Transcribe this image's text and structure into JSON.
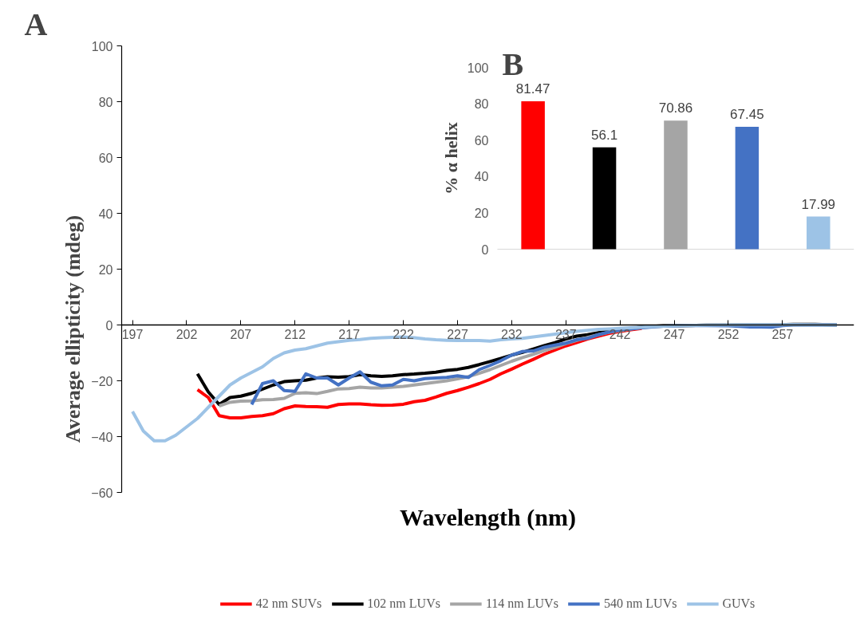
{
  "chart_data": [
    {
      "type": "line",
      "title": "A",
      "xlabel": "Wavelength (nm)",
      "ylabel": "Average ellipticity (mdeg)",
      "xlim": [
        196,
        263.6
      ],
      "ylim": [
        -60,
        100
      ],
      "xticks": [
        197,
        202,
        207,
        212,
        217,
        222,
        227,
        232,
        237,
        242,
        247,
        252,
        257
      ],
      "yticks": [
        -60,
        -40,
        -20,
        0,
        20,
        40,
        60,
        80,
        100
      ],
      "legend": "bottom",
      "line_style": "solid",
      "marker": "none",
      "series": [
        {
          "name": "42 nm SUVs",
          "color": "#ff0000",
          "x": [
            203,
            204,
            205,
            206,
            207,
            208,
            209,
            210,
            211,
            212,
            213,
            214,
            215,
            216,
            217,
            218,
            219,
            220,
            221,
            222,
            223,
            224,
            225,
            226,
            227,
            228,
            229,
            230,
            231,
            232,
            233,
            234,
            235,
            236,
            237,
            238,
            239,
            240,
            241,
            242,
            243,
            244
          ],
          "values": [
            -23.2,
            -26,
            -32.5,
            -33.3,
            -33.3,
            -32.8,
            -32.5,
            -31.8,
            -30,
            -29,
            -29.2,
            -29.3,
            -29.5,
            -28.5,
            -28.3,
            -28.3,
            -28.6,
            -28.8,
            -28.7,
            -28.4,
            -27.5,
            -27,
            -25.8,
            -24.5,
            -23.5,
            -22.3,
            -21,
            -19.5,
            -17.5,
            -15.8,
            -14,
            -12.3,
            -10.5,
            -9,
            -7.5,
            -6.3,
            -5,
            -4,
            -3,
            -2.3,
            -1.7,
            -1.2
          ]
        },
        {
          "name": "102 nm LUVs",
          "color": "#000000",
          "x": [
            203,
            204,
            205,
            206,
            207,
            208,
            209,
            210,
            211,
            212,
            213,
            214,
            215,
            216,
            217,
            218,
            219,
            220,
            221,
            222,
            223,
            224,
            225,
            226,
            227,
            228,
            229,
            230,
            231,
            232,
            233,
            234,
            235,
            236,
            237,
            238,
            239,
            240,
            241,
            242,
            243,
            244,
            245,
            246,
            248,
            250,
            252,
            254,
            256,
            258,
            260,
            262
          ],
          "values": [
            -17.5,
            -24,
            -28.5,
            -26,
            -25.5,
            -24.5,
            -23,
            -21.5,
            -20.3,
            -20,
            -19.8,
            -19,
            -18.6,
            -18.7,
            -18.5,
            -17.8,
            -18.2,
            -18.4,
            -18.2,
            -17.8,
            -17.6,
            -17.3,
            -16.9,
            -16.3,
            -15.9,
            -15.2,
            -14.2,
            -13.1,
            -12,
            -10.8,
            -9.8,
            -8.6,
            -7.4,
            -6.3,
            -5,
            -4,
            -3.5,
            -2.8,
            -2.2,
            -1.7,
            -1.2,
            -0.8,
            -0.5,
            -0.3,
            -0.2,
            -0.1,
            -0.1,
            0,
            0,
            0.2,
            0.2,
            0
          ]
        },
        {
          "name": "114 nm LUVs",
          "color": "#a5a5a5",
          "x": [
            205,
            206,
            207,
            208,
            209,
            210,
            211,
            212,
            213,
            214,
            215,
            216,
            217,
            218,
            219,
            220,
            221,
            222,
            223,
            224,
            225,
            226,
            227,
            228,
            229,
            230,
            231,
            232,
            233,
            234,
            235,
            236,
            237,
            238,
            239,
            240,
            241,
            242,
            243,
            244,
            245,
            246,
            248,
            250,
            252,
            254,
            256,
            258,
            260,
            262
          ],
          "values": [
            -29,
            -27.7,
            -27.3,
            -27.2,
            -26.8,
            -26.7,
            -26.3,
            -24.5,
            -24.3,
            -24.6,
            -23.8,
            -22.9,
            -22.8,
            -22.3,
            -22.6,
            -22.6,
            -22.3,
            -22,
            -21.5,
            -21,
            -20.5,
            -20,
            -19.3,
            -18.5,
            -17.3,
            -16,
            -14.5,
            -13,
            -11.7,
            -10.5,
            -9.2,
            -8,
            -6.7,
            -5.5,
            -4.5,
            -3.5,
            -2.6,
            -2,
            -1.4,
            -1,
            -0.6,
            -0.4,
            -0.2,
            -0.1,
            0,
            0,
            0,
            0.1,
            0.1,
            0
          ]
        },
        {
          "name": "540 nm LUVs",
          "color": "#4472c4",
          "x": [
            208,
            209,
            210,
            211,
            212,
            213,
            214,
            215,
            216,
            217,
            218,
            219,
            220,
            221,
            222,
            223,
            224,
            225,
            226,
            227,
            228,
            229,
            230,
            231,
            232,
            233,
            234,
            235,
            236,
            237,
            238,
            239,
            240,
            241,
            242,
            243,
            244,
            245,
            246,
            248,
            250,
            252,
            254,
            255,
            256,
            257,
            258,
            260,
            262
          ],
          "values": [
            -28.5,
            -21,
            -20,
            -23.5,
            -23.8,
            -17.5,
            -19,
            -19,
            -21.5,
            -19,
            -16.8,
            -20.5,
            -21.8,
            -21.5,
            -19.5,
            -20,
            -19.2,
            -19,
            -18.8,
            -18.2,
            -18.8,
            -16,
            -14.5,
            -12.8,
            -10.8,
            -9.5,
            -9.3,
            -8,
            -7.2,
            -6.5,
            -5.3,
            -4.8,
            -3.5,
            -2.5,
            -1.8,
            -1.4,
            -1,
            -0.7,
            -0.4,
            -0.2,
            -0.2,
            -0.3,
            -0.7,
            -0.7,
            -0.8,
            -0.2,
            0,
            0,
            0
          ]
        },
        {
          "name": "GUVs",
          "color": "#9dc3e6",
          "x": [
            197,
            198,
            199,
            200,
            201,
            202,
            203,
            204,
            205,
            206,
            207,
            208,
            209,
            210,
            211,
            212,
            213,
            214,
            215,
            216,
            217,
            218,
            219,
            220,
            221,
            222,
            223,
            224,
            225,
            226,
            227,
            228,
            229,
            230,
            231,
            232,
            233,
            234,
            235,
            236,
            237,
            238,
            239,
            240,
            241,
            242,
            243,
            244,
            245,
            246,
            247,
            248,
            250,
            252,
            254,
            256,
            258,
            260,
            262
          ],
          "values": [
            -31,
            -38,
            -41.5,
            -41.5,
            -39.5,
            -36.5,
            -33.5,
            -29.5,
            -25.5,
            -21.5,
            -19,
            -17,
            -15,
            -12,
            -10,
            -9,
            -8.5,
            -7.5,
            -6.5,
            -6,
            -5.5,
            -5.2,
            -4.8,
            -4.6,
            -4.4,
            -4.3,
            -4.6,
            -5,
            -5.3,
            -5.5,
            -5.6,
            -5.6,
            -5.6,
            -5.8,
            -5.3,
            -5,
            -4.8,
            -4.3,
            -3.8,
            -3.3,
            -2.8,
            -2.3,
            -1.9,
            -1.6,
            -1.4,
            -1.2,
            -1,
            -0.8,
            -0.6,
            -0.4,
            -0.3,
            -0.2,
            -0.1,
            0,
            0.1,
            0.1,
            0.1,
            0,
            0
          ]
        }
      ]
    },
    {
      "type": "bar",
      "title": "B",
      "ylabel": "% α helix",
      "categories": [
        null,
        null,
        null,
        null,
        null
      ],
      "values": [
        81.47,
        56.1,
        70.86,
        67.45,
        17.99
      ],
      "colors": [
        "#ff0000",
        "#000000",
        "#a5a5a5",
        "#4472c4",
        "#9dc3e6"
      ],
      "ylim": [
        0,
        100
      ],
      "yticks": [
        0,
        20,
        40,
        60,
        80,
        100
      ],
      "data_labels": true
    }
  ]
}
